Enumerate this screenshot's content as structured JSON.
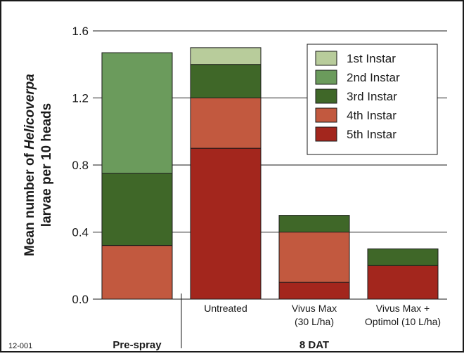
{
  "figure_id": "12-001",
  "chart_data": {
    "type": "bar",
    "stacked": true,
    "ylabel_line1_prefix": "Mean number of ",
    "ylabel_line1_italic": "Helicoverpa",
    "ylabel_line2": "larvae per 10 heads",
    "ylim": [
      0,
      1.6
    ],
    "yticks": [
      "0.0",
      "0.4",
      "0.8",
      "1.2",
      "1.6"
    ],
    "ytick_values": [
      0,
      0.4,
      0.8,
      1.2,
      1.6
    ],
    "grid": true,
    "legend_position": "top-right",
    "categories": [
      {
        "label_lines": []
      },
      {
        "label_lines": [
          "Untreated"
        ]
      },
      {
        "label_lines": [
          "Vivus Max",
          "(30 L/ha)"
        ]
      },
      {
        "label_lines": [
          "Vivus Max +",
          "Optimol (10 L/ha)"
        ]
      }
    ],
    "groups": [
      {
        "label": "Pre-spray"
      },
      {
        "label": "8 DAT"
      }
    ],
    "series": [
      {
        "name": "5th Instar",
        "color": "#a3261d",
        "values": [
          0,
          0.9,
          0.1,
          0.2
        ]
      },
      {
        "name": "4th Instar",
        "color": "#c2593f",
        "values": [
          0.32,
          0.3,
          0.3,
          0
        ]
      },
      {
        "name": "3rd Instar",
        "color": "#3f6728",
        "values": [
          0.43,
          0.2,
          0.1,
          0.1
        ]
      },
      {
        "name": "2nd Instar",
        "color": "#6b9b5c",
        "values": [
          0.72,
          0,
          0,
          0
        ]
      },
      {
        "name": "1st Instar",
        "color": "#b8cc9b",
        "values": [
          0,
          0.1,
          0,
          0
        ]
      }
    ]
  }
}
